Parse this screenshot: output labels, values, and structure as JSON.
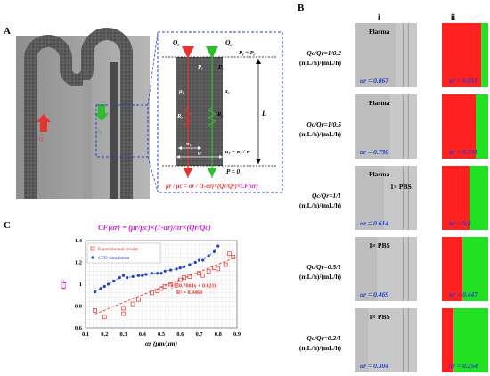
{
  "panels": {
    "A": "A",
    "B": "B",
    "C": "C",
    "col_i": "i",
    "col_ii": "ii"
  },
  "panel_a": {
    "q_left": "Q",
    "q_left_sub": "r",
    "q_right": "Q",
    "q_right_sub": "c",
    "pressure_eq": "P",
    "pressure_eq_rest": " ≈ P",
    "p_r": "P",
    "p_c": "P",
    "mu_r": "μ",
    "mu_c": "μ",
    "R_r": "R",
    "R_c": "R",
    "w_r": "w",
    "w": "w",
    "L": "L",
    "alpha_eq": "α",
    "alpha_eq_rest": " = w",
    "alpha_eq_tail": " / w",
    "p_zero": "P = 0",
    "formula_main": "μr / μc = αr / (1-αr)×(Qc/Qr)×",
    "formula_cf": "CF(αr)",
    "arrow_left_label": "Q",
    "arrow_right_label": "Q"
  },
  "panel_b": {
    "rows": [
      {
        "ratio": "Qc/Qr=1/0.2",
        "unit": "(mL/h)/(mL/h)",
        "medium": "Plasma",
        "alpha_i": "αr = 0.867",
        "alpha_ii": "αr = 0.851",
        "red_frac": 0.851
      },
      {
        "ratio": "Qc/Qr=1/0.5",
        "unit": "(mL/h)/(mL/h)",
        "medium": "Plasma",
        "alpha_i": "αr = 0.750",
        "alpha_ii": "αr = 0.731",
        "red_frac": 0.731
      },
      {
        "ratio": "Qc/Qr=1/1",
        "unit": "(mL/h)/(mL/h)",
        "medium": "Plasma",
        "medium2": "1× PBS",
        "alpha_i": "αr = 0.614",
        "alpha_ii": "αr = 0.6",
        "red_frac": 0.6
      },
      {
        "ratio": "Qc/Qr=0.5/1",
        "unit": "(mL/h)/(mL/h)",
        "medium": "1× PBS",
        "alpha_i": "αr = 0.469",
        "alpha_ii": "αr = 0.447",
        "red_frac": 0.447
      },
      {
        "ratio": "Qc/Qr=0.2/1",
        "unit": "(mL/h)/(mL/h)",
        "medium": "1× PBS",
        "alpha_i": "αr = 0.304",
        "alpha_ii": "αr = 0.254",
        "red_frac": 0.254
      }
    ]
  },
  "chart_data": {
    "type": "scatter",
    "title": "CF(αr) = (μr/μc)×(1-αr)/αr×(Qr/Qc)",
    "xlabel": "αr (μm/μm)",
    "ylabel": "CF",
    "xlim": [
      0.1,
      0.9
    ],
    "ylim": [
      0.6,
      1.4
    ],
    "xticks": [
      "0.1",
      "0.2",
      "0.3",
      "0.4",
      "0.5",
      "0.6",
      "0.7",
      "0.8",
      "0.9"
    ],
    "yticks": [
      "0.6",
      "0.8",
      "1",
      "1.2",
      "1.4"
    ],
    "grid": true,
    "legend_position": "top-left",
    "series": [
      {
        "name": "Experimental results",
        "marker": "open-square",
        "color": "#e8322d",
        "x": [
          0.15,
          0.2,
          0.3,
          0.3,
          0.35,
          0.38,
          0.45,
          0.48,
          0.5,
          0.52,
          0.55,
          0.58,
          0.6,
          0.62,
          0.65,
          0.7,
          0.72,
          0.75,
          0.78,
          0.8,
          0.84,
          0.86,
          0.88
        ],
        "y": [
          0.76,
          0.7,
          0.78,
          0.73,
          0.82,
          0.86,
          0.92,
          0.94,
          0.96,
          0.98,
          1.0,
          0.99,
          1.04,
          1.06,
          1.07,
          1.1,
          1.08,
          1.12,
          1.15,
          1.14,
          1.18,
          1.28,
          1.25
        ]
      },
      {
        "name": "CFD simulation",
        "marker": "dot",
        "color": "#1f3fd0",
        "x": [
          0.15,
          0.18,
          0.2,
          0.22,
          0.25,
          0.28,
          0.3,
          0.32,
          0.35,
          0.38,
          0.4,
          0.42,
          0.45,
          0.48,
          0.5,
          0.52,
          0.55,
          0.58,
          0.6,
          0.62,
          0.65,
          0.68,
          0.7,
          0.72,
          0.75,
          0.78,
          0.8
        ],
        "y": [
          0.93,
          0.96,
          0.98,
          1.0,
          1.03,
          1.06,
          1.08,
          1.06,
          1.07,
          1.08,
          1.08,
          1.09,
          1.1,
          1.1,
          1.1,
          1.12,
          1.13,
          1.14,
          1.15,
          1.16,
          1.18,
          1.2,
          1.22,
          1.22,
          1.26,
          1.3,
          1.35
        ]
      }
    ],
    "fit_line": {
      "color": "#e8322d",
      "slope": 0.7004,
      "intercept": 0.6216,
      "x_range": [
        0.15,
        0.9
      ]
    },
    "fit_equation": "y = 0.7004x + 0.6216",
    "fit_r2": "R² = 0.9469",
    "cfd_trend": {
      "color": "#1f3fd0",
      "x_range": [
        0.15,
        0.8
      ]
    }
  }
}
